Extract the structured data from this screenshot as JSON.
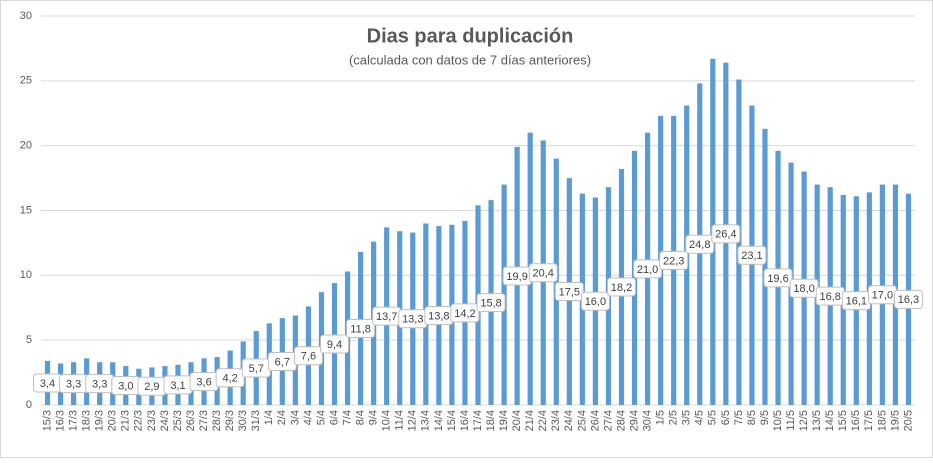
{
  "chart_data": {
    "type": "bar",
    "title": "Dias para duplicación",
    "subtitle": "(calculada con datos de 7 días anteriores)",
    "categories": [
      "15/3",
      "16/3",
      "17/3",
      "18/3",
      "19/3",
      "20/3",
      "21/3",
      "22/3",
      "23/3",
      "24/3",
      "25/3",
      "26/3",
      "27/3",
      "28/3",
      "29/3",
      "30/3",
      "31/3",
      "1/4",
      "2/4",
      "3/4",
      "4/4",
      "5/4",
      "6/4",
      "7/4",
      "8/4",
      "9/4",
      "10/4",
      "11/4",
      "12/4",
      "13/4",
      "14/4",
      "15/4",
      "16/4",
      "17/4",
      "18/4",
      "19/4",
      "20/4",
      "21/4",
      "22/4",
      "23/4",
      "24/4",
      "25/4",
      "26/4",
      "27/4",
      "28/4",
      "29/4",
      "30/4",
      "1/5",
      "2/5",
      "3/5",
      "4/5",
      "5/5",
      "6/5",
      "7/5",
      "8/5",
      "9/5",
      "10/5",
      "11/5",
      "12/5",
      "13/5",
      "14/5",
      "15/5",
      "16/5",
      "17/5",
      "18/5",
      "19/5",
      "20/5"
    ],
    "values": [
      3.4,
      3.2,
      3.3,
      3.6,
      3.3,
      3.3,
      3.0,
      2.8,
      2.9,
      3.0,
      3.1,
      3.3,
      3.6,
      3.7,
      4.2,
      4.9,
      5.7,
      6.3,
      6.7,
      6.9,
      7.6,
      8.7,
      9.4,
      10.3,
      11.8,
      12.6,
      13.7,
      13.4,
      13.3,
      14.0,
      13.8,
      13.9,
      14.2,
      15.4,
      15.8,
      17.0,
      19.9,
      21.0,
      20.4,
      19.0,
      17.5,
      16.3,
      16.0,
      16.8,
      18.2,
      19.6,
      21.0,
      22.3,
      22.3,
      23.1,
      24.8,
      26.7,
      26.4,
      25.1,
      23.1,
      21.3,
      19.6,
      18.7,
      18.0,
      17.0,
      16.8,
      16.2,
      16.1,
      16.4,
      17.0,
      17.0,
      16.3
    ],
    "value_labels": [
      "3,4",
      null,
      "3,3",
      null,
      "3,3",
      null,
      "3,0",
      null,
      "2,9",
      null,
      "3,1",
      null,
      "3,6",
      null,
      "4,2",
      null,
      "5,7",
      null,
      "6,7",
      null,
      "7,6",
      null,
      "9,4",
      null,
      "11,8",
      null,
      "13,7",
      null,
      "13,3",
      null,
      "13,8",
      null,
      "14,2",
      null,
      "15,8",
      null,
      "19,9",
      null,
      "20,4",
      null,
      "17,5",
      null,
      "16,0",
      null,
      "18,2",
      null,
      "21,0",
      null,
      "22,3",
      null,
      "24,8",
      null,
      "26,4",
      null,
      "23,1",
      null,
      "19,6",
      null,
      "18,0",
      null,
      "16,8",
      null,
      "16,1",
      null,
      "17,0",
      null,
      "16,3"
    ],
    "color": "#5b9bd5",
    "ylim": [
      0,
      30
    ],
    "yticks": [
      0,
      5,
      10,
      15,
      20,
      25,
      30
    ],
    "grid": true
  }
}
